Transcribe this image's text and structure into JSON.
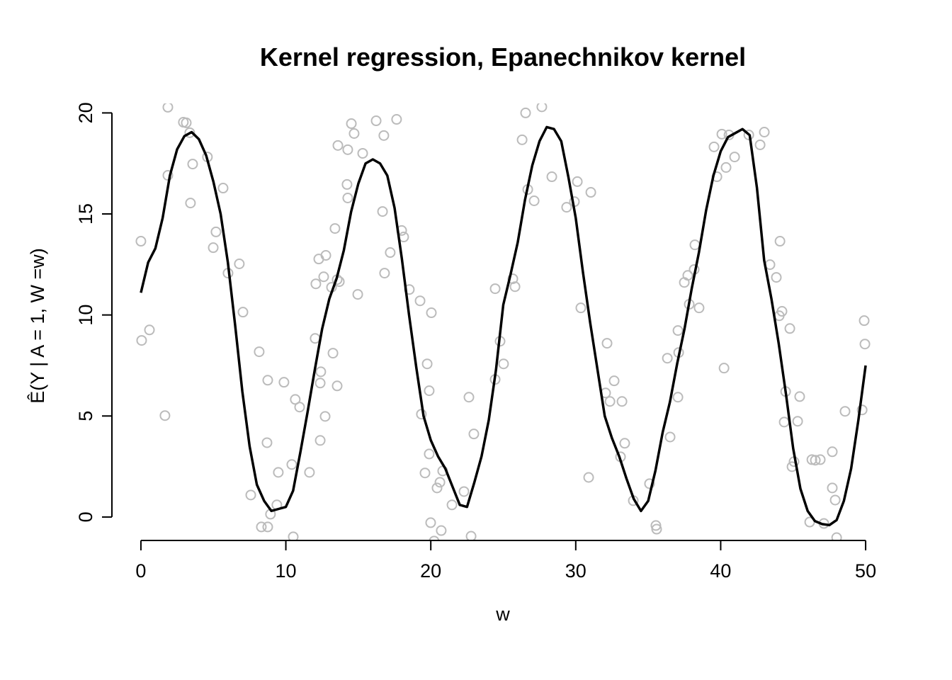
{
  "chart_data": {
    "type": "scatter",
    "title": "Kernel regression, Epanechnikov kernel",
    "x_label": "w",
    "y_label": "Ê(Y | A = 1, W =w)",
    "xlim": [
      -2,
      52
    ],
    "ylim": [
      -1.16,
      20.4
    ],
    "xticks": [
      0,
      10,
      20,
      30,
      40,
      50
    ],
    "yticks": [
      0,
      5,
      10,
      15,
      20
    ],
    "grid": false,
    "series": [
      {
        "type": "scatter",
        "color": "#bbbbbb",
        "x": [
          0,
          0.05,
          0.59,
          1.66,
          1.86,
          1.86,
          2.93,
          3.13,
          3.37,
          3.57,
          3.42,
          4.59,
          5.18,
          4.99,
          5.67,
          6.01,
          6.79,
          7.04,
          7.58,
          8.16,
          8.31,
          8.75,
          8.7,
          8.75,
          8.94,
          9.38,
          9.48,
          9.87,
          10.41,
          10.51,
          10.65,
          10.95,
          11.63,
          12.02,
          12.07,
          12.27,
          12.37,
          12.41,
          12.37,
          12.61,
          12.76,
          12.71,
          13.15,
          13.25,
          13.39,
          13.54,
          13.69,
          13.54,
          13.59,
          14.22,
          14.27,
          14.27,
          14.52,
          14.71,
          14.96,
          15.3,
          16.23,
          16.67,
          16.76,
          16.81,
          17.2,
          17.64,
          17.99,
          18.13,
          18.52,
          19.26,
          19.35,
          19.6,
          19.75,
          19.89,
          19.89,
          19.99,
          20.04,
          20.23,
          20.43,
          20.63,
          20.72,
          20.82,
          21.46,
          22.29,
          22.63,
          22.78,
          22.97,
          24.44,
          24.44,
          24.78,
          25.02,
          25.66,
          25.81,
          26.3,
          26.54,
          26.69,
          27.13,
          27.66,
          28.35,
          29.37,
          29.91,
          30.11,
          30.35,
          30.89,
          31.04,
          32.16,
          32.06,
          32.36,
          32.65,
          33.09,
          33.19,
          33.38,
          33.97,
          35.09,
          35.53,
          35.58,
          36.32,
          36.51,
          37.05,
          37.1,
          37.05,
          37.49,
          37.73,
          37.83,
          38.17,
          38.22,
          38.51,
          39.54,
          39.74,
          40.08,
          40.23,
          40.37,
          40.57,
          40.96,
          41.94,
          42.72,
          43.01,
          43.4,
          43.84,
          44.09,
          44.04,
          44.23,
          44.38,
          44.48,
          44.77,
          44.92,
          45.06,
          45.31,
          45.45,
          46.14,
          46.29,
          46.53,
          46.87,
          47.12,
          47.7,
          47.7,
          47.9,
          48,
          48.58,
          49.76,
          49.9,
          49.95
        ],
        "values": [
          13.65,
          8.74,
          9.26,
          5.02,
          20.28,
          16.91,
          19.54,
          19.51,
          19.02,
          17.47,
          15.54,
          17.82,
          14.11,
          13.33,
          16.28,
          12.07,
          12.53,
          10.14,
          1.09,
          8.18,
          -0.49,
          -0.49,
          3.68,
          6.77,
          0.14,
          0.6,
          2.21,
          6.67,
          2.6,
          -0.98,
          5.82,
          5.44,
          2.21,
          8.84,
          11.54,
          12.77,
          6.63,
          7.19,
          3.79,
          11.89,
          12.95,
          4.98,
          11.37,
          8.11,
          14.28,
          11.75,
          11.65,
          6.49,
          18.39,
          16.46,
          18.18,
          15.79,
          19.47,
          18.98,
          11.02,
          18,
          19.61,
          15.12,
          18.88,
          12.07,
          13.09,
          19.68,
          14.18,
          13.86,
          11.26,
          10.7,
          5.09,
          2.18,
          7.58,
          6.25,
          3.12,
          -0.28,
          10.11,
          -1.19,
          1.44,
          1.72,
          -0.67,
          2.28,
          0.6,
          1.26,
          5.93,
          -0.95,
          4.11,
          6.81,
          11.3,
          8.7,
          7.58,
          11.79,
          11.4,
          18.67,
          20,
          16.21,
          15.65,
          20.3,
          16.84,
          15.33,
          15.61,
          16.6,
          10.35,
          1.96,
          16.07,
          8.6,
          6.14,
          5.72,
          6.74,
          2.98,
          5.72,
          3.65,
          0.81,
          1.65,
          -0.42,
          -0.6,
          7.86,
          3.96,
          5.93,
          8.14,
          9.23,
          11.61,
          11.96,
          10.53,
          12.25,
          13.47,
          10.35,
          18.32,
          16.84,
          18.95,
          7.37,
          17.3,
          18.91,
          17.82,
          18.91,
          18.42,
          19.05,
          12.49,
          11.86,
          13.65,
          9.96,
          10.18,
          4.7,
          6.21,
          9.33,
          2.49,
          2.74,
          4.74,
          5.96,
          -0.25,
          2.84,
          2.81,
          2.84,
          -0.32,
          3.23,
          1.44,
          0.84,
          -1.02,
          5.23,
          5.3,
          9.72,
          8.56
        ]
      },
      {
        "type": "line",
        "color": "#000000",
        "x": [
          0,
          0.5,
          1,
          1.5,
          2,
          2.5,
          3,
          3.5,
          4,
          4.5,
          5,
          5.5,
          6,
          6.5,
          7,
          7.5,
          8,
          8.5,
          9,
          9.5,
          10,
          10.5,
          11,
          11.5,
          12,
          12.5,
          13,
          13.5,
          14,
          14.5,
          15,
          15.5,
          16,
          16.5,
          17,
          17.5,
          18,
          18.5,
          19,
          19.5,
          20,
          20.5,
          21,
          21.5,
          22,
          22.5,
          23,
          23.5,
          24,
          24.5,
          25,
          25.5,
          26,
          26.5,
          27,
          27.5,
          28,
          28.5,
          29,
          29.5,
          30,
          30.5,
          31,
          31.5,
          32,
          32.5,
          33,
          33.5,
          34,
          34.5,
          35,
          35.5,
          36,
          36.5,
          37,
          37.5,
          38,
          38.5,
          39,
          39.5,
          40,
          40.5,
          41,
          41.5,
          42,
          42.5,
          43,
          43.5,
          44,
          44.5,
          45,
          45.5,
          46,
          46.5,
          47,
          47.5,
          48,
          48.5,
          49,
          49.5,
          50
        ],
        "values": [
          11.1,
          12.6,
          13.3,
          14.8,
          16.9,
          18.2,
          18.85,
          19.05,
          18.7,
          17.9,
          16.6,
          15,
          12.6,
          9.5,
          6.2,
          3.5,
          1.6,
          0.8,
          0.3,
          0.4,
          0.5,
          1.3,
          3.2,
          5.2,
          7.3,
          9.3,
          10.8,
          11.8,
          13.2,
          15.1,
          16.5,
          17.5,
          17.7,
          17.5,
          16.9,
          15.3,
          12.8,
          10,
          7.4,
          5,
          3.8,
          3,
          2.4,
          1.5,
          0.6,
          0.5,
          1.7,
          3,
          4.8,
          7.3,
          10.5,
          12,
          13.6,
          15.7,
          17.4,
          18.6,
          19.3,
          19.2,
          18.6,
          16.8,
          14.8,
          12.1,
          9.6,
          7.3,
          5,
          3.9,
          3,
          1.9,
          0.9,
          0.3,
          0.8,
          2.3,
          4.2,
          5.7,
          7.6,
          9.3,
          11.3,
          13.1,
          15.2,
          16.9,
          18.1,
          18.8,
          19,
          19.2,
          18.9,
          16.3,
          12.7,
          10.8,
          8.6,
          6.1,
          3.4,
          1.4,
          0.3,
          -0.2,
          -0.35,
          -0.4,
          -0.15,
          0.8,
          2.4,
          4.8,
          7.5
        ]
      }
    ]
  }
}
